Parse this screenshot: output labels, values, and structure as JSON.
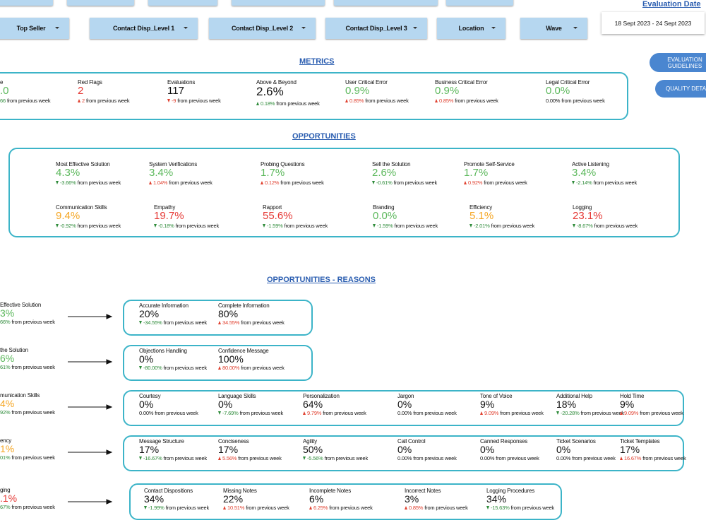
{
  "delta_note": "from previous week",
  "filters": [
    "Top Seller",
    "Contact Disp_Level 1",
    "Contact Disp_Level 2",
    "Contact Disp_Level 3",
    "Location",
    "Wave"
  ],
  "evaluation_date": {
    "label": "Evaluation Date",
    "value": "18 Sept 2023 - 24 Sept 2023"
  },
  "buttons": [
    "EVALUATION GUIDELINES",
    "QUALITY DETA"
  ],
  "metrics": {
    "title": "METRICS",
    "items": [
      {
        "label": "e",
        "value": ".0",
        "color": "#5cb85c",
        "delta": "66",
        "delta_color": "#2e8b3a"
      },
      {
        "label": "Red Flags",
        "value": "2",
        "color": "#e53935",
        "delta": "2",
        "delta_color": "#e0402f",
        "dir": "up"
      },
      {
        "label": "Evaluations",
        "value": "117",
        "color": "#111111",
        "delta": "-9",
        "delta_color": "#e0402f",
        "dir": "down"
      },
      {
        "label": "Above & Beyond",
        "value": "2.6%",
        "color": "#111111",
        "delta": "0.18%",
        "delta_color": "#2e8b3a",
        "dir": "up"
      },
      {
        "label": "User Critical Error",
        "value": "0.9%",
        "color": "#5cb85c",
        "delta": "0.85%",
        "delta_color": "#e0402f",
        "dir": "up"
      },
      {
        "label": "Business Critical Error",
        "value": "0.9%",
        "color": "#5cb85c",
        "delta": "0.85%",
        "delta_color": "#e0402f",
        "dir": "up"
      },
      {
        "label": "Legal Critical Error",
        "value": "0.0%",
        "color": "#5cb85c",
        "delta": "0.00%",
        "delta_color": "#111111"
      }
    ]
  },
  "opportunities": {
    "title": "OPPORTUNITIES",
    "items": [
      {
        "label": "Most Effective Solution",
        "value": "4.3%",
        "color": "#5cb85c",
        "delta": "-3.66%",
        "delta_color": "#2e8b3a",
        "dir": "down"
      },
      {
        "label": "System Verifications",
        "value": "3.4%",
        "color": "#5cb85c",
        "delta": "1.04%",
        "delta_color": "#e0402f",
        "dir": "up"
      },
      {
        "label": "Probing Questions",
        "value": "1.7%",
        "color": "#5cb85c",
        "delta": "0.12%",
        "delta_color": "#e0402f",
        "dir": "up"
      },
      {
        "label": "Sell the Solution",
        "value": "2.6%",
        "color": "#5cb85c",
        "delta": "-0.61%",
        "delta_color": "#2e8b3a",
        "dir": "down"
      },
      {
        "label": "Promote Self-Service",
        "value": "1.7%",
        "color": "#5cb85c",
        "delta": "0.92%",
        "delta_color": "#e0402f",
        "dir": "up"
      },
      {
        "label": "Active Listening",
        "value": "3.4%",
        "color": "#5cb85c",
        "delta": "-2.14%",
        "delta_color": "#2e8b3a",
        "dir": "down"
      },
      {
        "label": "Communication Skills",
        "value": "9.4%",
        "color": "#f5a623",
        "delta": "-0.92%",
        "delta_color": "#2e8b3a",
        "dir": "down"
      },
      {
        "label": "Empathy",
        "value": "19.7%",
        "color": "#e53935",
        "delta": "-0.18%",
        "delta_color": "#2e8b3a",
        "dir": "down"
      },
      {
        "label": "Rapport",
        "value": "55.6%",
        "color": "#e53935",
        "delta": "-1.59%",
        "delta_color": "#2e8b3a",
        "dir": "down"
      },
      {
        "label": "Branding",
        "value": "0.0%",
        "color": "#5cb85c",
        "delta": "-1.59%",
        "delta_color": "#2e8b3a",
        "dir": "down"
      },
      {
        "label": "Efficiency",
        "value": "5.1%",
        "color": "#f5a623",
        "delta": "-2.01%",
        "delta_color": "#2e8b3a",
        "dir": "down"
      },
      {
        "label": "Logging",
        "value": "23.1%",
        "color": "#e53935",
        "delta": "-8.67%",
        "delta_color": "#2e8b3a",
        "dir": "down"
      }
    ]
  },
  "reasons": {
    "title": "OPPORTUNITIES - REASONS",
    "groups": [
      {
        "source": {
          "label": "Effective Solution",
          "value": "3%",
          "color": "#5cb85c",
          "delta": "66%",
          "delta_color": "#2e8b3a"
        },
        "items": [
          {
            "label": "Accurate Information",
            "value": "20%",
            "color": "#111111",
            "delta": "-34.55%",
            "delta_color": "#2e8b3a",
            "dir": "down"
          },
          {
            "label": "Complete Information",
            "value": "80%",
            "color": "#111111",
            "delta": "34.55%",
            "delta_color": "#e0402f",
            "dir": "up"
          }
        ]
      },
      {
        "source": {
          "label": "the Solution",
          "value": "6%",
          "color": "#5cb85c",
          "delta": "61%",
          "delta_color": "#2e8b3a"
        },
        "items": [
          {
            "label": "Objections Handling",
            "value": "0%",
            "color": "#111111",
            "delta": "-80.00%",
            "delta_color": "#2e8b3a",
            "dir": "down"
          },
          {
            "label": "Confidence Message",
            "value": "100%",
            "color": "#111111",
            "delta": "80.00%",
            "delta_color": "#e0402f",
            "dir": "up"
          }
        ]
      },
      {
        "source": {
          "label": "munication Skills",
          "value": "4%",
          "color": "#f5a623",
          "delta": "92%",
          "delta_color": "#2e8b3a"
        },
        "items": [
          {
            "label": "Courtesy",
            "value": "0%",
            "color": "#111111",
            "delta": "0.00%",
            "delta_color": "#111111"
          },
          {
            "label": "Language Skills",
            "value": "0%",
            "color": "#111111",
            "delta": "-7.69%",
            "delta_color": "#2e8b3a",
            "dir": "down"
          },
          {
            "label": "Personalization",
            "value": "64%",
            "color": "#111111",
            "delta": "9.79%",
            "delta_color": "#e0402f",
            "dir": "up"
          },
          {
            "label": "Jargon",
            "value": "0%",
            "color": "#111111",
            "delta": "0.00%",
            "delta_color": "#111111"
          },
          {
            "label": "Tone of Voice",
            "value": "9%",
            "color": "#111111",
            "delta": "9.09%",
            "delta_color": "#e0402f",
            "dir": "up"
          },
          {
            "label": "Additional Help",
            "value": "18%",
            "color": "#111111",
            "delta": "-20.28%",
            "delta_color": "#2e8b3a",
            "dir": "down"
          },
          {
            "label": "Hold Time",
            "value": "9%",
            "color": "#111111",
            "delta": "9.09%",
            "delta_color": "#e0402f",
            "dir": "up"
          }
        ]
      },
      {
        "source": {
          "label": "ency",
          "value": "1%",
          "color": "#f5a623",
          "delta": "01%",
          "delta_color": "#2e8b3a"
        },
        "items": [
          {
            "label": "Message Structure",
            "value": "17%",
            "color": "#111111",
            "delta": "-16.67%",
            "delta_color": "#2e8b3a",
            "dir": "down"
          },
          {
            "label": "Conciseness",
            "value": "17%",
            "color": "#111111",
            "delta": "5.56%",
            "delta_color": "#e0402f",
            "dir": "up"
          },
          {
            "label": "Agility",
            "value": "50%",
            "color": "#111111",
            "delta": "-5.56%",
            "delta_color": "#2e8b3a",
            "dir": "down"
          },
          {
            "label": "Call Control",
            "value": "0%",
            "color": "#111111",
            "delta": "0.00%",
            "delta_color": "#111111"
          },
          {
            "label": "Canned Responses",
            "value": "0%",
            "color": "#111111",
            "delta": "0.00%",
            "delta_color": "#111111"
          },
          {
            "label": "Ticket Scenarios",
            "value": "0%",
            "color": "#111111",
            "delta": "0.00%",
            "delta_color": "#111111"
          },
          {
            "label": "Ticket Templates",
            "value": "17%",
            "color": "#111111",
            "delta": "16.67%",
            "delta_color": "#e0402f",
            "dir": "up"
          }
        ]
      },
      {
        "source": {
          "label": "ging",
          "value": ".1%",
          "color": "#e53935",
          "delta": "67%",
          "delta_color": "#2e8b3a"
        },
        "items": [
          {
            "label": "Contact Dispositions",
            "value": "34%",
            "color": "#111111",
            "delta": "-1.99%",
            "delta_color": "#2e8b3a",
            "dir": "down"
          },
          {
            "label": "Missing Notes",
            "value": "22%",
            "color": "#111111",
            "delta": "10.51%",
            "delta_color": "#e0402f",
            "dir": "up"
          },
          {
            "label": "Incomplete Notes",
            "value": "6%",
            "color": "#111111",
            "delta": "6.25%",
            "delta_color": "#e0402f",
            "dir": "up"
          },
          {
            "label": "Incorrect Notes",
            "value": "3%",
            "color": "#111111",
            "delta": "0.85%",
            "delta_color": "#e0402f",
            "dir": "up"
          },
          {
            "label": "Logging Procedures",
            "value": "34%",
            "color": "#111111",
            "delta": "-15.63%",
            "delta_color": "#2e8b3a",
            "dir": "down"
          }
        ]
      }
    ]
  }
}
